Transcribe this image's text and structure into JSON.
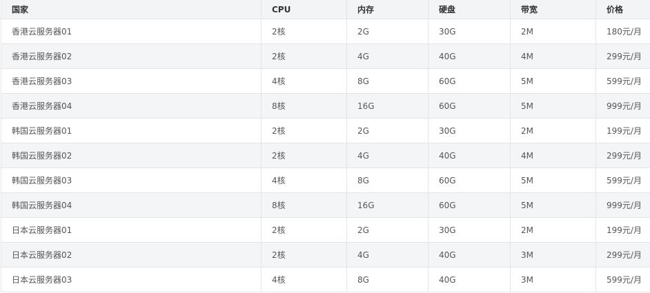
{
  "headers": [
    "国家",
    "CPU",
    "内存",
    "硬盘",
    "带宽",
    "价格"
  ],
  "rows": [
    [
      "香港云服务器01",
      "2核",
      "2G",
      "30G",
      "2M",
      "180元/月"
    ],
    [
      "香港云服务器02",
      "2核",
      "4G",
      "40G",
      "4M",
      "299元/月"
    ],
    [
      "香港云服务器03",
      "4核",
      "8G",
      "60G",
      "5M",
      "599元/月"
    ],
    [
      "香港云服务器04",
      "8核",
      "16G",
      "60G",
      "5M",
      "999元/月"
    ],
    [
      "韩国云服务器01",
      "2核",
      "2G",
      "30G",
      "2M",
      "199元/月"
    ],
    [
      "韩国云服务器02",
      "2核",
      "4G",
      "40G",
      "4M",
      "299元/月"
    ],
    [
      "韩国云服务器03",
      "4核",
      "8G",
      "60G",
      "5M",
      "599元/月"
    ],
    [
      "韩国云服务器04",
      "8核",
      "16G",
      "60G",
      "5M",
      "999元/月"
    ],
    [
      "日本云服务器01",
      "2核",
      "2G",
      "30G",
      "2M",
      "199元/月"
    ],
    [
      "日本云服务器02",
      "2核",
      "4G",
      "40G",
      "3M",
      "299元/月"
    ],
    [
      "日本云服务器03",
      "4核",
      "8G",
      "40G",
      "3M",
      "599元/月"
    ]
  ]
}
